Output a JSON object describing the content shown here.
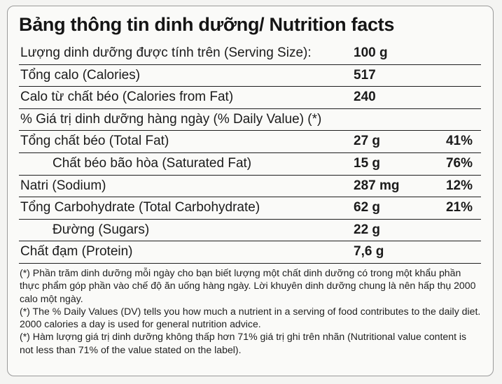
{
  "title": "Bảng thông tin dinh dưỡng/ Nutrition facts",
  "rows": [
    {
      "label": "Lượng dinh dưỡng được tính trên (Serving Size):",
      "amount": "100 g",
      "dv": ""
    },
    {
      "label": "Tổng calo (Calories)",
      "amount": "517",
      "dv": ""
    },
    {
      "label": "Calo từ chất béo (Calories from Fat)",
      "amount": "240",
      "dv": ""
    },
    {
      "label": "% Giá trị dinh dưỡng hàng ngày (% Daily Value) (*)",
      "amount": "",
      "dv": ""
    },
    {
      "label": "Tổng chất béo (Total Fat)",
      "amount": "27 g",
      "dv": "41%"
    },
    {
      "label": "Chất béo bão hòa (Saturated Fat)",
      "amount": "15 g",
      "dv": "76%"
    },
    {
      "label": "Natri (Sodium)",
      "amount": "287 mg",
      "dv": "12%"
    },
    {
      "label": "Tổng Carbohydrate (Total Carbohydrate)",
      "amount": "62 g",
      "dv": "21%"
    },
    {
      "label": "Đường (Sugars)",
      "amount": "22 g",
      "dv": ""
    },
    {
      "label": "Chất đạm (Protein)",
      "amount": "7,6 g",
      "dv": ""
    }
  ],
  "notes": [
    "(*) Phần trăm dinh dưỡng mỗi ngày cho bạn biết lượng một chất dinh dưỡng có trong một khẩu phần thực phẩm góp phần vào chế độ ăn uống hàng ngày. Lời khuyên dinh dưỡng chung là nên hấp thụ 2000 calo một ngày.",
    "(*) The % Daily Values (DV) tells you how much a nutrient in a serving of food contributes to the daily diet. 2000 calories a day is used for general nutrition advice.",
    "(*) Hàm lượng giá trị dinh dưỡng không thấp hơn 71% giá trị ghi trên nhãn (Nutritional value content is not less than 71% of the value stated on the label)."
  ]
}
